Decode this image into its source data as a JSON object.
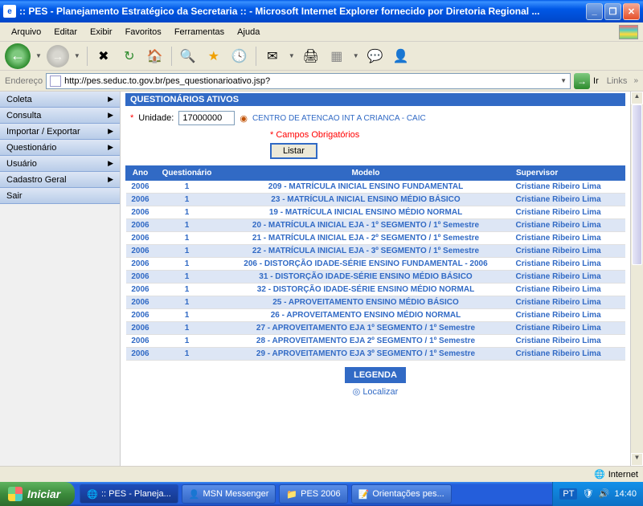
{
  "window": {
    "title": ":: PES - Planejamento Estratégico da Secretaria :: - Microsoft Internet Explorer fornecido por Diretoria Regional ..."
  },
  "menubar": {
    "items": [
      "Arquivo",
      "Editar",
      "Exibir",
      "Favoritos",
      "Ferramentas",
      "Ajuda"
    ]
  },
  "addressbar": {
    "label": "Endereço",
    "url": "http://pes.seduc.to.gov.br/pes_questionarioativo.jsp?",
    "go": "Ir",
    "links": "Links"
  },
  "sidebar": {
    "items": [
      {
        "label": "Coleta",
        "arrow": true
      },
      {
        "label": "Consulta",
        "arrow": true
      },
      {
        "label": "Importar / Exportar",
        "arrow": true
      },
      {
        "label": "Questionário",
        "arrow": true
      },
      {
        "label": "Usuário",
        "arrow": true
      },
      {
        "label": "Cadastro Geral",
        "arrow": true
      },
      {
        "label": "Sair",
        "arrow": false
      }
    ]
  },
  "panel": {
    "title": "QUESTIONÁRIOS ATIVOS",
    "unit_label": "Unidade:",
    "unit_value": "17000000",
    "unit_name": "CENTRO DE ATENCAO INT A CRIANCA - CAIC",
    "required_note": "* Campos Obrigatórios",
    "listar": "Listar",
    "columns": [
      "Ano",
      "Questionário",
      "Modelo",
      "Supervisor"
    ],
    "rows": [
      {
        "ano": "2006",
        "q": "1",
        "modelo": "209 - MATRÍCULA INICIAL ENSINO FUNDAMENTAL",
        "sup": "Cristiane Ribeiro Lima"
      },
      {
        "ano": "2006",
        "q": "1",
        "modelo": "23 - MATRÍCULA INICIAL ENSINO MÉDIO BÁSICO",
        "sup": "Cristiane Ribeiro Lima"
      },
      {
        "ano": "2006",
        "q": "1",
        "modelo": "19 - MATRÍCULA INICIAL ENSINO MÉDIO NORMAL",
        "sup": "Cristiane Ribeiro Lima"
      },
      {
        "ano": "2006",
        "q": "1",
        "modelo": "20 - MATRÍCULA INICIAL EJA - 1º SEGMENTO / 1º Semestre",
        "sup": "Cristiane Ribeiro Lima"
      },
      {
        "ano": "2006",
        "q": "1",
        "modelo": "21 - MATRÍCULA INICIAL EJA - 2º SEGMENTO / 1º Semestre",
        "sup": "Cristiane Ribeiro Lima"
      },
      {
        "ano": "2006",
        "q": "1",
        "modelo": "22 - MATRÍCULA INICIAL EJA - 3º SEGMENTO / 1º Semestre",
        "sup": "Cristiane Ribeiro Lima"
      },
      {
        "ano": "2006",
        "q": "1",
        "modelo": "206 - DISTORÇÃO IDADE-SÉRIE ENSINO FUNDAMENTAL - 2006",
        "sup": "Cristiane Ribeiro Lima"
      },
      {
        "ano": "2006",
        "q": "1",
        "modelo": "31 - DISTORÇÃO IDADE-SÉRIE ENSINO MÉDIO BÁSICO",
        "sup": "Cristiane Ribeiro Lima"
      },
      {
        "ano": "2006",
        "q": "1",
        "modelo": "32 - DISTORÇÃO IDADE-SÉRIE ENSINO MÉDIO NORMAL",
        "sup": "Cristiane Ribeiro Lima"
      },
      {
        "ano": "2006",
        "q": "1",
        "modelo": "25 - APROVEITAMENTO ENSINO MÉDIO BÁSICO",
        "sup": "Cristiane Ribeiro Lima"
      },
      {
        "ano": "2006",
        "q": "1",
        "modelo": "26 - APROVEITAMENTO ENSINO MÉDIO NORMAL",
        "sup": "Cristiane Ribeiro Lima"
      },
      {
        "ano": "2006",
        "q": "1",
        "modelo": "27 - APROVEITAMENTO EJA 1º SEGMENTO / 1º Semestre",
        "sup": "Cristiane Ribeiro Lima"
      },
      {
        "ano": "2006",
        "q": "1",
        "modelo": "28 - APROVEITAMENTO EJA 2º SEGMENTO / 1º Semestre",
        "sup": "Cristiane Ribeiro Lima"
      },
      {
        "ano": "2006",
        "q": "1",
        "modelo": "29 - APROVEITAMENTO EJA 3º SEGMENTO / 1º Semestre",
        "sup": "Cristiane Ribeiro Lima"
      }
    ],
    "legend": "LEGENDA",
    "localizar": "Localizar"
  },
  "statusbar": {
    "zone": "Internet"
  },
  "taskbar": {
    "start": "Iniciar",
    "items": [
      {
        "label": ":: PES - Planeja...",
        "icon": "🌐",
        "active": true
      },
      {
        "label": "MSN Messenger",
        "icon": "👤",
        "active": false
      },
      {
        "label": "PES 2006",
        "icon": "📁",
        "active": false
      },
      {
        "label": "Orientações pes...",
        "icon": "📝",
        "active": false
      }
    ],
    "lang": "PT",
    "clock": "14:40"
  }
}
